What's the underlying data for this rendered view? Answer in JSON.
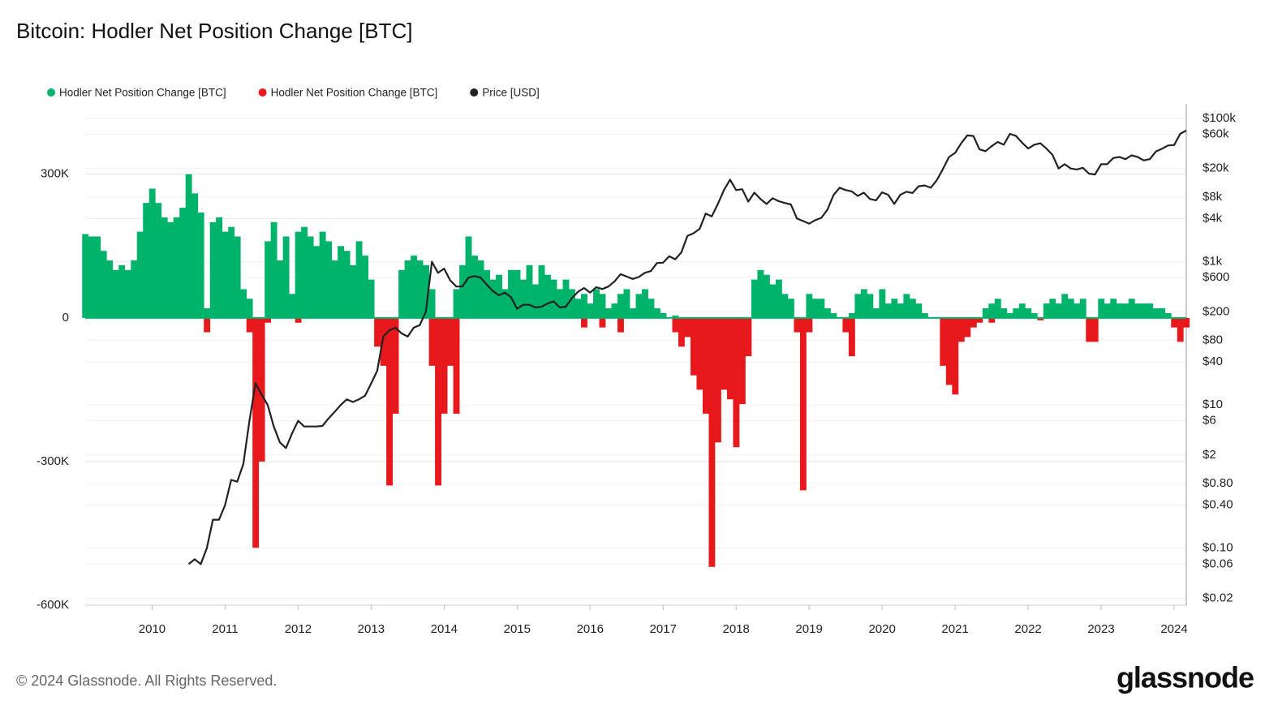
{
  "chart_data": {
    "type": "bar-line",
    "title": "Bitcoin: Hodler Net Position Change [BTC]",
    "footer": "© 2024 Glassnode. All Rights Reserved.",
    "logo": "glassnode",
    "x": [
      "2009-02",
      "2009-03",
      "2009-04",
      "2009-05",
      "2009-06",
      "2009-07",
      "2009-08",
      "2009-09",
      "2009-10",
      "2009-11",
      "2009-12",
      "2010-01",
      "2010-02",
      "2010-03",
      "2010-04",
      "2010-05",
      "2010-06",
      "2010-07",
      "2010-08",
      "2010-09",
      "2010-10",
      "2010-11",
      "2010-12",
      "2011-01",
      "2011-02",
      "2011-03",
      "2011-04",
      "2011-05",
      "2011-06",
      "2011-07",
      "2011-08",
      "2011-09",
      "2011-10",
      "2011-11",
      "2011-12",
      "2012-01",
      "2012-02",
      "2012-03",
      "2012-04",
      "2012-05",
      "2012-06",
      "2012-07",
      "2012-08",
      "2012-09",
      "2012-10",
      "2012-11",
      "2012-12",
      "2013-01",
      "2013-02",
      "2013-03",
      "2013-04",
      "2013-05",
      "2013-06",
      "2013-07",
      "2013-08",
      "2013-09",
      "2013-10",
      "2013-11",
      "2013-12",
      "2014-01",
      "2014-02",
      "2014-03",
      "2014-04",
      "2014-05",
      "2014-06",
      "2014-07",
      "2014-08",
      "2014-09",
      "2014-10",
      "2014-11",
      "2014-12",
      "2015-01",
      "2015-02",
      "2015-03",
      "2015-04",
      "2015-05",
      "2015-06",
      "2015-07",
      "2015-08",
      "2015-09",
      "2015-10",
      "2015-11",
      "2015-12",
      "2016-01",
      "2016-02",
      "2016-03",
      "2016-04",
      "2016-05",
      "2016-06",
      "2016-07",
      "2016-08",
      "2016-09",
      "2016-10",
      "2016-11",
      "2016-12",
      "2017-01",
      "2017-02",
      "2017-03",
      "2017-04",
      "2017-05",
      "2017-06",
      "2017-07",
      "2017-08",
      "2017-09",
      "2017-10",
      "2017-11",
      "2017-12",
      "2018-01",
      "2018-02",
      "2018-03",
      "2018-04",
      "2018-05",
      "2018-06",
      "2018-07",
      "2018-08",
      "2018-09",
      "2018-10",
      "2018-11",
      "2018-12",
      "2019-01",
      "2019-02",
      "2019-03",
      "2019-04",
      "2019-05",
      "2019-06",
      "2019-07",
      "2019-08",
      "2019-09",
      "2019-10",
      "2019-11",
      "2019-12",
      "2020-01",
      "2020-02",
      "2020-03",
      "2020-04",
      "2020-05",
      "2020-06",
      "2020-07",
      "2020-08",
      "2020-09",
      "2020-10",
      "2020-11",
      "2020-12",
      "2021-01",
      "2021-02",
      "2021-03",
      "2021-04",
      "2021-05",
      "2021-06",
      "2021-07",
      "2021-08",
      "2021-09",
      "2021-10",
      "2021-11",
      "2021-12",
      "2022-01",
      "2022-02",
      "2022-03",
      "2022-04",
      "2022-05",
      "2022-06",
      "2022-07",
      "2022-08",
      "2022-09",
      "2022-10",
      "2022-11",
      "2022-12",
      "2023-01",
      "2023-02",
      "2023-03",
      "2023-04",
      "2023-05",
      "2023-06",
      "2023-07",
      "2023-08",
      "2023-09",
      "2023-10",
      "2023-11",
      "2023-12",
      "2024-01",
      "2024-02",
      "2024-03"
    ],
    "series": [
      {
        "name": "Hodler Net Position Change [BTC]",
        "color": "#00b36b",
        "values": [
          175000,
          170000,
          170000,
          140000,
          120000,
          100000,
          110000,
          100000,
          120000,
          180000,
          240000,
          270000,
          240000,
          210000,
          200000,
          210000,
          230000,
          300000,
          260000,
          220000,
          20000,
          200000,
          210000,
          180000,
          190000,
          170000,
          60000,
          40000,
          0,
          0,
          160000,
          200000,
          120000,
          170000,
          50000,
          180000,
          190000,
          170000,
          150000,
          180000,
          160000,
          120000,
          150000,
          140000,
          110000,
          160000,
          130000,
          80000,
          0,
          0,
          0,
          0,
          100000,
          120000,
          130000,
          120000,
          110000,
          60000,
          0,
          0,
          0,
          60000,
          110000,
          170000,
          130000,
          120000,
          100000,
          80000,
          90000,
          60000,
          100000,
          100000,
          80000,
          110000,
          70000,
          110000,
          90000,
          80000,
          60000,
          80000,
          60000,
          40000,
          50000,
          30000,
          60000,
          50000,
          20000,
          30000,
          50000,
          60000,
          20000,
          50000,
          60000,
          40000,
          20000,
          10000,
          0,
          5000,
          0,
          0,
          0,
          0,
          0,
          0,
          0,
          0,
          0,
          0,
          0,
          0,
          80000,
          100000,
          90000,
          70000,
          80000,
          50000,
          40000,
          0,
          0,
          50000,
          40000,
          40000,
          20000,
          10000,
          0,
          0,
          10000,
          50000,
          60000,
          50000,
          20000,
          60000,
          30000,
          40000,
          30000,
          50000,
          40000,
          30000,
          10000,
          0,
          0,
          0,
          0,
          0,
          0,
          0,
          0,
          0,
          20000,
          30000,
          40000,
          20000,
          10000,
          20000,
          30000,
          20000,
          10000,
          0,
          30000,
          40000,
          30000,
          50000,
          40000,
          30000,
          40000,
          0,
          0,
          40000,
          30000,
          40000,
          30000,
          30000,
          40000,
          30000,
          30000,
          30000,
          20000,
          20000,
          10000,
          0,
          0,
          0
        ]
      },
      {
        "name": "Hodler Net Position Change [BTC]",
        "color": "#e8191c",
        "values": [
          0,
          0,
          0,
          0,
          0,
          0,
          0,
          0,
          0,
          0,
          0,
          0,
          0,
          0,
          0,
          0,
          0,
          0,
          0,
          0,
          -30000,
          0,
          0,
          0,
          0,
          0,
          0,
          -30000,
          -480000,
          -300000,
          -10000,
          0,
          0,
          0,
          0,
          -10000,
          0,
          0,
          0,
          0,
          0,
          0,
          0,
          0,
          0,
          0,
          0,
          0,
          -60000,
          -100000,
          -350000,
          -200000,
          0,
          0,
          0,
          0,
          0,
          -100000,
          -350000,
          -200000,
          -100000,
          -200000,
          0,
          0,
          0,
          0,
          0,
          0,
          0,
          0,
          0,
          0,
          0,
          0,
          0,
          0,
          0,
          0,
          0,
          0,
          0,
          0,
          -20000,
          0,
          0,
          -20000,
          0,
          0,
          -30000,
          0,
          0,
          0,
          0,
          0,
          0,
          0,
          0,
          -30000,
          -60000,
          -40000,
          -120000,
          -150000,
          -200000,
          -520000,
          -260000,
          -150000,
          -170000,
          -270000,
          -180000,
          -80000,
          0,
          0,
          0,
          0,
          0,
          0,
          0,
          -30000,
          -360000,
          -30000,
          0,
          0,
          0,
          0,
          0,
          -30000,
          -80000,
          0,
          0,
          0,
          0,
          0,
          0,
          0,
          0,
          0,
          0,
          0,
          0,
          0,
          0,
          -100000,
          -140000,
          -160000,
          -50000,
          -40000,
          -20000,
          -10000,
          0,
          -10000,
          0,
          0,
          0,
          0,
          0,
          0,
          0,
          -5000,
          0,
          0,
          0,
          0,
          0,
          0,
          0,
          -50000,
          -50000,
          0,
          0,
          0,
          0,
          0,
          0,
          0,
          0,
          0,
          0,
          0,
          0,
          -20000,
          -50000,
          -20000
        ]
      },
      {
        "name": "Price [USD]",
        "color": "#222222",
        "axis": "y2",
        "type": "line",
        "values": [
          null,
          null,
          null,
          null,
          null,
          null,
          null,
          null,
          null,
          null,
          null,
          null,
          null,
          null,
          null,
          null,
          null,
          0.06,
          0.07,
          0.06,
          0.1,
          0.25,
          0.25,
          0.4,
          0.9,
          0.85,
          1.5,
          6,
          20,
          14,
          10,
          5,
          3,
          2.5,
          4,
          6,
          5,
          5,
          5,
          5.1,
          6.5,
          8,
          10,
          12,
          11,
          12,
          13.5,
          20,
          30,
          90,
          110,
          120,
          100,
          90,
          120,
          130,
          200,
          1000,
          700,
          800,
          550,
          450,
          450,
          600,
          630,
          600,
          480,
          390,
          340,
          370,
          320,
          220,
          250,
          250,
          230,
          235,
          260,
          280,
          230,
          235,
          310,
          380,
          430,
          370,
          440,
          415,
          450,
          530,
          670,
          620,
          575,
          610,
          700,
          740,
          960,
          970,
          1190,
          1080,
          1350,
          2300,
          2500,
          2870,
          4700,
          4300,
          6400,
          10000,
          14000,
          10000,
          10300,
          6900,
          9200,
          7500,
          6400,
          7700,
          7000,
          6600,
          6300,
          4000,
          3700,
          3400,
          3800,
          4100,
          5300,
          8500,
          10800,
          10000,
          9600,
          8300,
          9200,
          7500,
          7200,
          9300,
          8600,
          6400,
          8600,
          9500,
          9100,
          11300,
          11600,
          10800,
          13800,
          19700,
          29000,
          33000,
          45000,
          58000,
          57000,
          37000,
          35000,
          41000,
          47000,
          43000,
          61000,
          57000,
          46000,
          38000,
          43000,
          45000,
          38000,
          31000,
          20000,
          23000,
          20000,
          19400,
          20500,
          17000,
          16500,
          23000,
          23000,
          28000,
          29000,
          27000,
          30500,
          29000,
          26000,
          27000,
          34500,
          37700,
          42000,
          42500,
          61000,
          68000
        ]
      }
    ],
    "xlim": [
      "2009-02",
      "2024-03"
    ],
    "xticks": [
      {
        "value": "2010-01",
        "label": "2010"
      },
      {
        "value": "2011-01",
        "label": "2011"
      },
      {
        "value": "2012-01",
        "label": "2012"
      },
      {
        "value": "2013-01",
        "label": "2013"
      },
      {
        "value": "2014-01",
        "label": "2014"
      },
      {
        "value": "2015-01",
        "label": "2015"
      },
      {
        "value": "2016-01",
        "label": "2016"
      },
      {
        "value": "2017-01",
        "label": "2017"
      },
      {
        "value": "2018-01",
        "label": "2018"
      },
      {
        "value": "2019-01",
        "label": "2019"
      },
      {
        "value": "2020-01",
        "label": "2020"
      },
      {
        "value": "2021-01",
        "label": "2021"
      },
      {
        "value": "2022-01",
        "label": "2022"
      },
      {
        "value": "2023-01",
        "label": "2023"
      },
      {
        "value": "2024-01",
        "label": "2024"
      }
    ],
    "ylim": [
      -600000,
      447000
    ],
    "yticks": [
      {
        "value": -600000,
        "label": "-600K"
      },
      {
        "value": -300000,
        "label": "-300K"
      },
      0,
      {
        "value": 300000,
        "label": "300K"
      }
    ],
    "y2lim": [
      0.016,
      160000
    ],
    "y2scale": "log",
    "y2ticks": [
      {
        "value": 0.02,
        "label": "$0.02"
      },
      {
        "value": 0.06,
        "label": "$0.06"
      },
      {
        "value": 0.1,
        "label": "$0.10"
      },
      {
        "value": 0.4,
        "label": "$0.40"
      },
      {
        "value": 0.8,
        "label": "$0.80"
      },
      {
        "value": 2,
        "label": "$2"
      },
      {
        "value": 6,
        "label": "$6"
      },
      {
        "value": 10,
        "label": "$10"
      },
      {
        "value": 40,
        "label": "$40"
      },
      {
        "value": 80,
        "label": "$80"
      },
      {
        "value": 200,
        "label": "$200"
      },
      {
        "value": 600,
        "label": "$600"
      },
      {
        "value": 1000,
        "label": "$1k"
      },
      {
        "value": 4000,
        "label": "$4k"
      },
      {
        "value": 8000,
        "label": "$8k"
      },
      {
        "value": 20000,
        "label": "$20k"
      },
      {
        "value": 60000,
        "label": "$60k"
      },
      {
        "value": 100000,
        "label": "$100k"
      }
    ],
    "grid": true,
    "legend": "top-left"
  }
}
